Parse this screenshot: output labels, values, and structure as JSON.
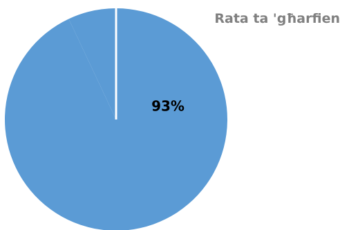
{
  "chart_data": {
    "type": "pie",
    "title": "Rata ta 'għarfien",
    "slices": [
      {
        "label": "93%",
        "value": 93,
        "color": "#5b9bd5"
      },
      {
        "label": "",
        "value": 7,
        "color": "#5b9bd5"
      }
    ],
    "start_angle_deg": 0,
    "direction": "clockwise",
    "separator_color": "#ffffff"
  }
}
